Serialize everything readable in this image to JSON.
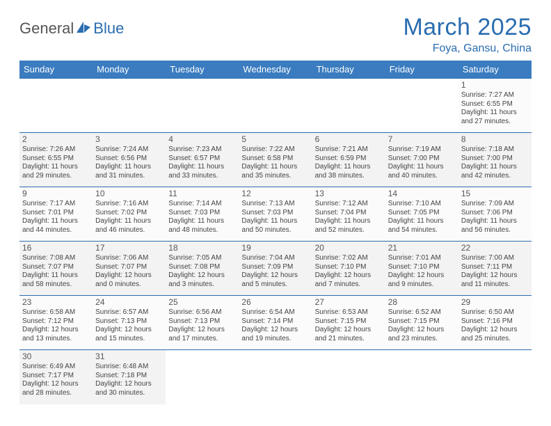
{
  "logo": {
    "text1": "General",
    "text2": "Blue"
  },
  "title": "March 2025",
  "location": "Foya, Gansu, China",
  "colors": {
    "header_bg": "#3a7cbf",
    "accent": "#2a6db0",
    "text": "#444444"
  },
  "dayHeaders": [
    "Sunday",
    "Monday",
    "Tuesday",
    "Wednesday",
    "Thursday",
    "Friday",
    "Saturday"
  ],
  "weeks": [
    [
      null,
      null,
      null,
      null,
      null,
      null,
      {
        "n": "1",
        "sr": "Sunrise: 7:27 AM",
        "ss": "Sunset: 6:55 PM",
        "dl": "Daylight: 11 hours and 27 minutes."
      }
    ],
    [
      {
        "n": "2",
        "sr": "Sunrise: 7:26 AM",
        "ss": "Sunset: 6:55 PM",
        "dl": "Daylight: 11 hours and 29 minutes."
      },
      {
        "n": "3",
        "sr": "Sunrise: 7:24 AM",
        "ss": "Sunset: 6:56 PM",
        "dl": "Daylight: 11 hours and 31 minutes."
      },
      {
        "n": "4",
        "sr": "Sunrise: 7:23 AM",
        "ss": "Sunset: 6:57 PM",
        "dl": "Daylight: 11 hours and 33 minutes."
      },
      {
        "n": "5",
        "sr": "Sunrise: 7:22 AM",
        "ss": "Sunset: 6:58 PM",
        "dl": "Daylight: 11 hours and 35 minutes."
      },
      {
        "n": "6",
        "sr": "Sunrise: 7:21 AM",
        "ss": "Sunset: 6:59 PM",
        "dl": "Daylight: 11 hours and 38 minutes."
      },
      {
        "n": "7",
        "sr": "Sunrise: 7:19 AM",
        "ss": "Sunset: 7:00 PM",
        "dl": "Daylight: 11 hours and 40 minutes."
      },
      {
        "n": "8",
        "sr": "Sunrise: 7:18 AM",
        "ss": "Sunset: 7:00 PM",
        "dl": "Daylight: 11 hours and 42 minutes."
      }
    ],
    [
      {
        "n": "9",
        "sr": "Sunrise: 7:17 AM",
        "ss": "Sunset: 7:01 PM",
        "dl": "Daylight: 11 hours and 44 minutes."
      },
      {
        "n": "10",
        "sr": "Sunrise: 7:16 AM",
        "ss": "Sunset: 7:02 PM",
        "dl": "Daylight: 11 hours and 46 minutes."
      },
      {
        "n": "11",
        "sr": "Sunrise: 7:14 AM",
        "ss": "Sunset: 7:03 PM",
        "dl": "Daylight: 11 hours and 48 minutes."
      },
      {
        "n": "12",
        "sr": "Sunrise: 7:13 AM",
        "ss": "Sunset: 7:03 PM",
        "dl": "Daylight: 11 hours and 50 minutes."
      },
      {
        "n": "13",
        "sr": "Sunrise: 7:12 AM",
        "ss": "Sunset: 7:04 PM",
        "dl": "Daylight: 11 hours and 52 minutes."
      },
      {
        "n": "14",
        "sr": "Sunrise: 7:10 AM",
        "ss": "Sunset: 7:05 PM",
        "dl": "Daylight: 11 hours and 54 minutes."
      },
      {
        "n": "15",
        "sr": "Sunrise: 7:09 AM",
        "ss": "Sunset: 7:06 PM",
        "dl": "Daylight: 11 hours and 56 minutes."
      }
    ],
    [
      {
        "n": "16",
        "sr": "Sunrise: 7:08 AM",
        "ss": "Sunset: 7:07 PM",
        "dl": "Daylight: 11 hours and 58 minutes."
      },
      {
        "n": "17",
        "sr": "Sunrise: 7:06 AM",
        "ss": "Sunset: 7:07 PM",
        "dl": "Daylight: 12 hours and 0 minutes."
      },
      {
        "n": "18",
        "sr": "Sunrise: 7:05 AM",
        "ss": "Sunset: 7:08 PM",
        "dl": "Daylight: 12 hours and 3 minutes."
      },
      {
        "n": "19",
        "sr": "Sunrise: 7:04 AM",
        "ss": "Sunset: 7:09 PM",
        "dl": "Daylight: 12 hours and 5 minutes."
      },
      {
        "n": "20",
        "sr": "Sunrise: 7:02 AM",
        "ss": "Sunset: 7:10 PM",
        "dl": "Daylight: 12 hours and 7 minutes."
      },
      {
        "n": "21",
        "sr": "Sunrise: 7:01 AM",
        "ss": "Sunset: 7:10 PM",
        "dl": "Daylight: 12 hours and 9 minutes."
      },
      {
        "n": "22",
        "sr": "Sunrise: 7:00 AM",
        "ss": "Sunset: 7:11 PM",
        "dl": "Daylight: 12 hours and 11 minutes."
      }
    ],
    [
      {
        "n": "23",
        "sr": "Sunrise: 6:58 AM",
        "ss": "Sunset: 7:12 PM",
        "dl": "Daylight: 12 hours and 13 minutes."
      },
      {
        "n": "24",
        "sr": "Sunrise: 6:57 AM",
        "ss": "Sunset: 7:13 PM",
        "dl": "Daylight: 12 hours and 15 minutes."
      },
      {
        "n": "25",
        "sr": "Sunrise: 6:56 AM",
        "ss": "Sunset: 7:13 PM",
        "dl": "Daylight: 12 hours and 17 minutes."
      },
      {
        "n": "26",
        "sr": "Sunrise: 6:54 AM",
        "ss": "Sunset: 7:14 PM",
        "dl": "Daylight: 12 hours and 19 minutes."
      },
      {
        "n": "27",
        "sr": "Sunrise: 6:53 AM",
        "ss": "Sunset: 7:15 PM",
        "dl": "Daylight: 12 hours and 21 minutes."
      },
      {
        "n": "28",
        "sr": "Sunrise: 6:52 AM",
        "ss": "Sunset: 7:15 PM",
        "dl": "Daylight: 12 hours and 23 minutes."
      },
      {
        "n": "29",
        "sr": "Sunrise: 6:50 AM",
        "ss": "Sunset: 7:16 PM",
        "dl": "Daylight: 12 hours and 25 minutes."
      }
    ],
    [
      {
        "n": "30",
        "sr": "Sunrise: 6:49 AM",
        "ss": "Sunset: 7:17 PM",
        "dl": "Daylight: 12 hours and 28 minutes."
      },
      {
        "n": "31",
        "sr": "Sunrise: 6:48 AM",
        "ss": "Sunset: 7:18 PM",
        "dl": "Daylight: 12 hours and 30 minutes."
      },
      null,
      null,
      null,
      null,
      null
    ]
  ]
}
